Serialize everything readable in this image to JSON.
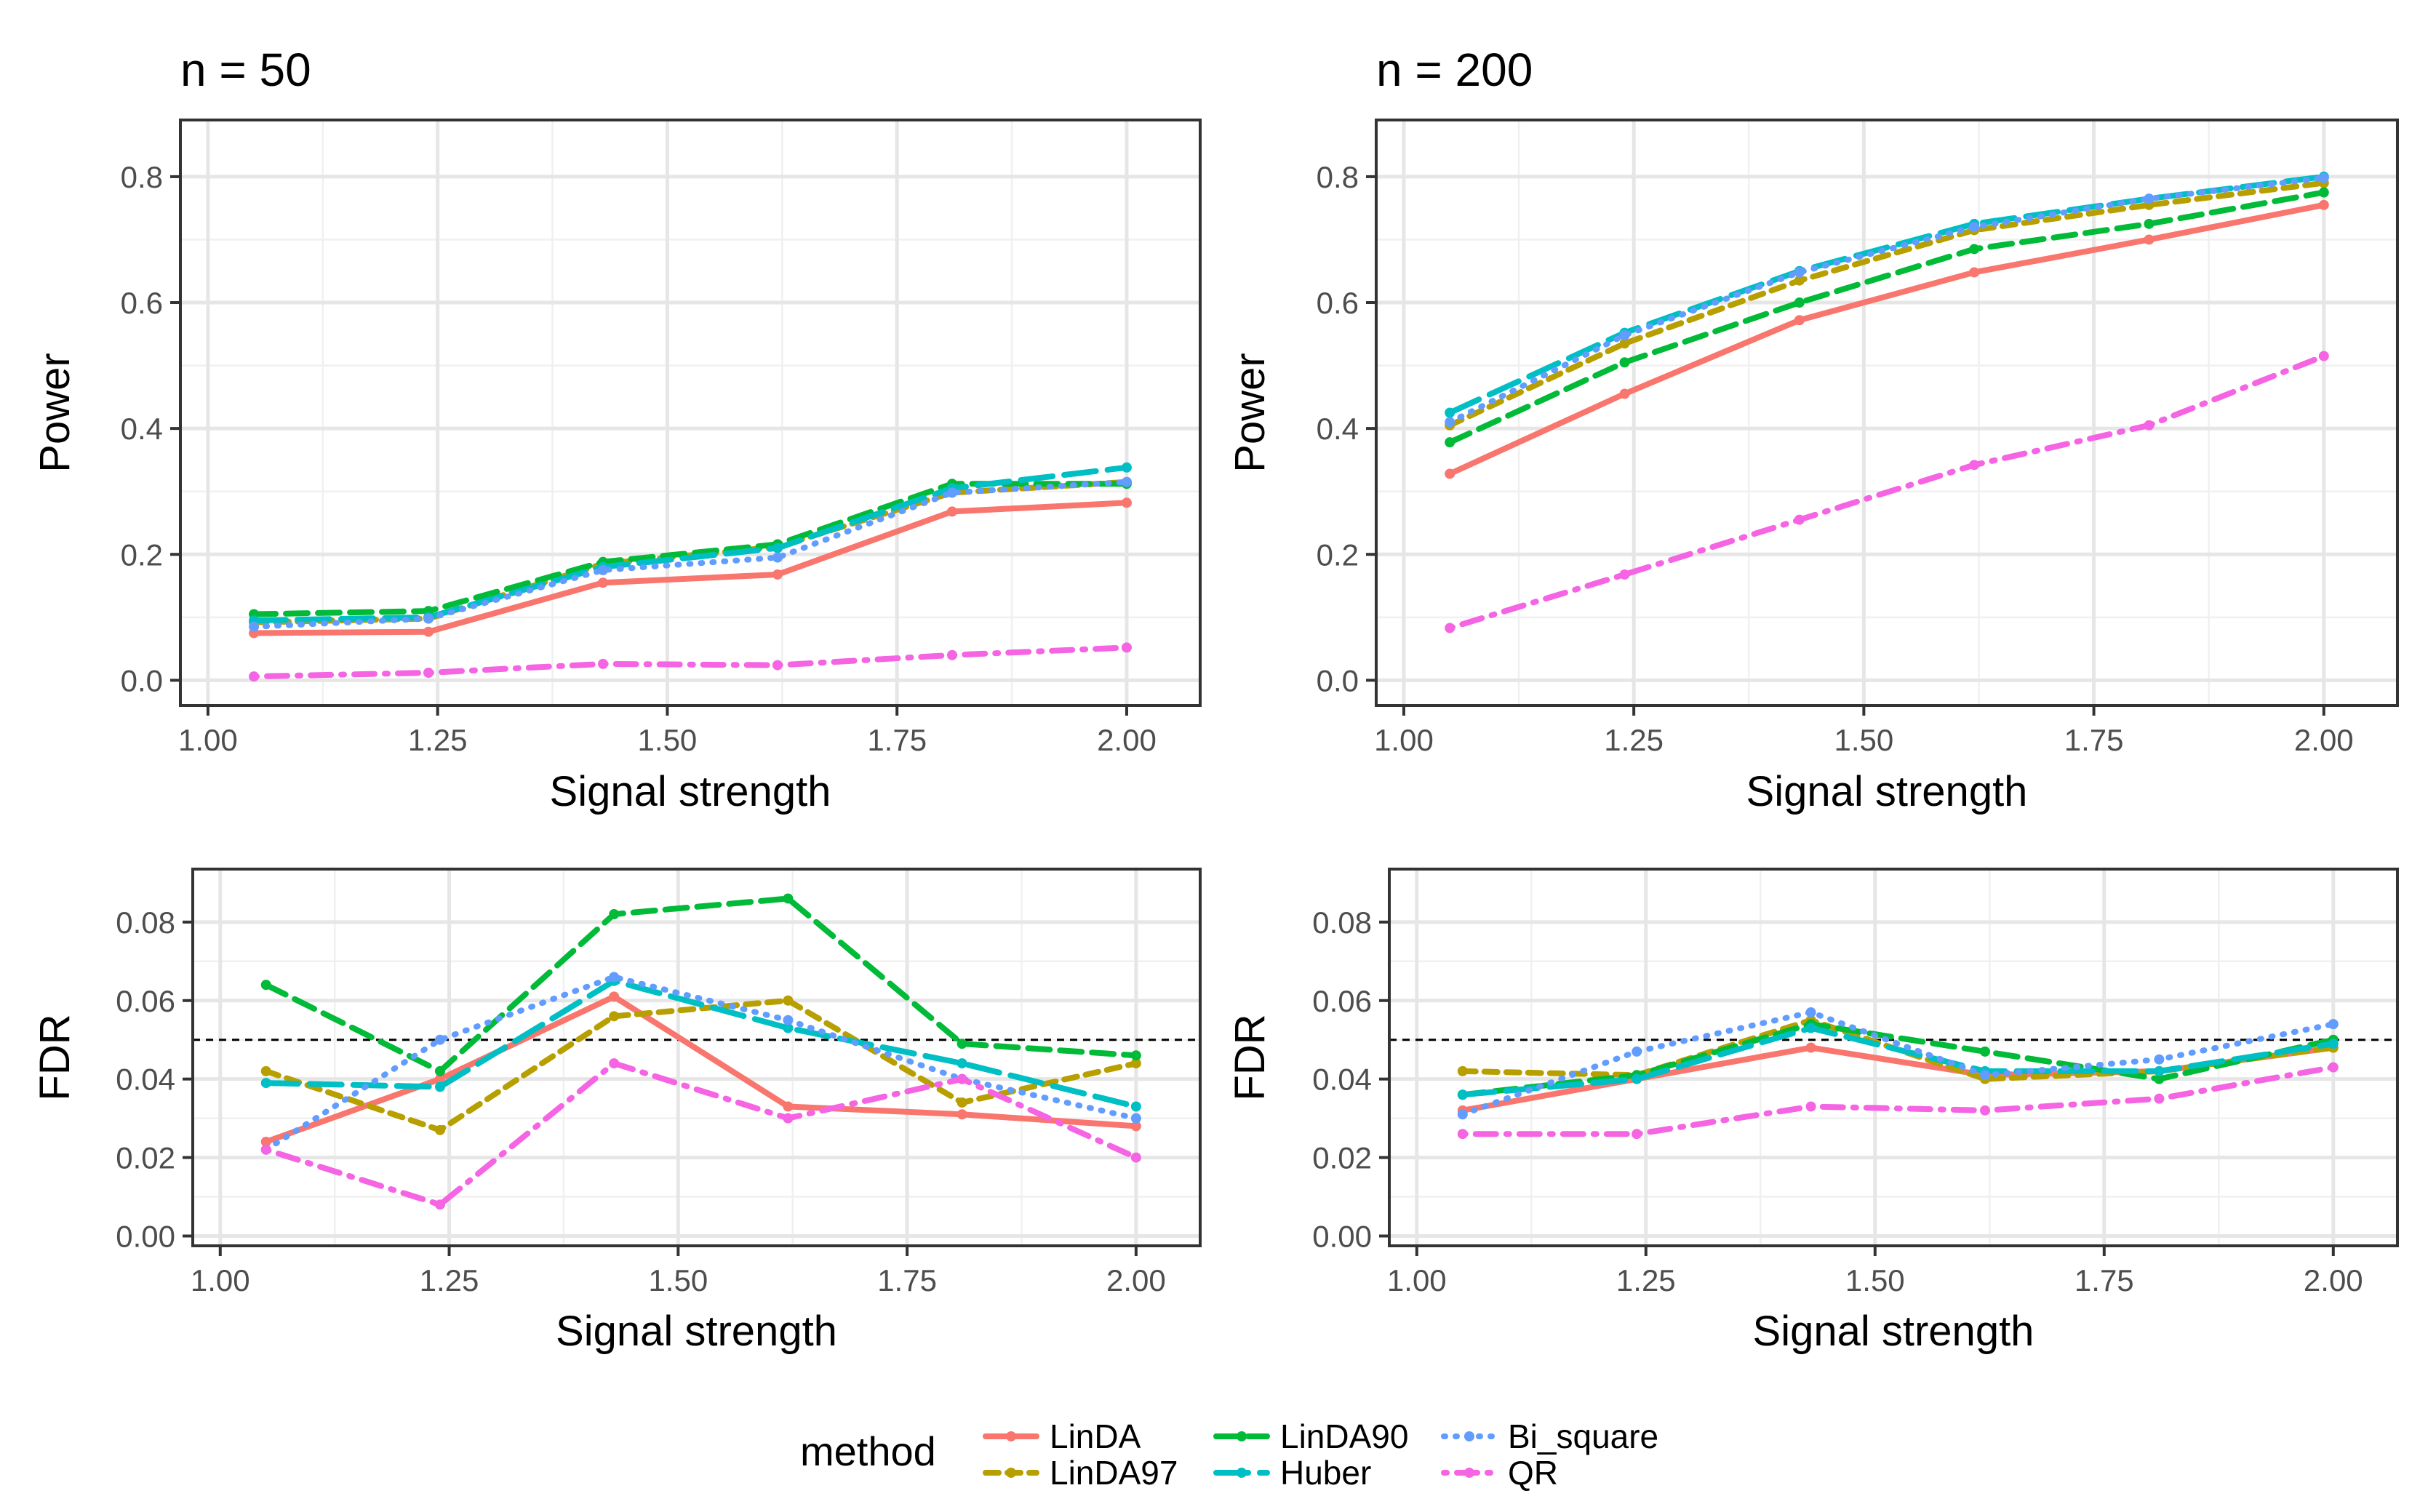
{
  "chart_data": [
    {
      "id": "power_n50",
      "type": "line",
      "title": "n = 50",
      "xlabel": "Signal strength",
      "ylabel": "Power",
      "xlim": [
        0.97,
        2.08
      ],
      "ylim": [
        -0.04,
        0.89
      ],
      "xticks": [
        1.0,
        1.25,
        1.5,
        1.75,
        2.0
      ],
      "xtick_labels": [
        "1.00",
        "1.25",
        "1.50",
        "1.75",
        "2.00"
      ],
      "yticks": [
        0.0,
        0.2,
        0.4,
        0.6,
        0.8
      ],
      "ytick_labels": [
        "0.0",
        "0.2",
        "0.4",
        "0.6",
        "0.8"
      ],
      "x": [
        1.05,
        1.24,
        1.43,
        1.62,
        1.81,
        2.0
      ],
      "series": [
        {
          "name": "LinDA",
          "values": [
            0.075,
            0.077,
            0.155,
            0.168,
            0.268,
            0.282
          ]
        },
        {
          "name": "LinDA97",
          "values": [
            0.092,
            0.098,
            0.185,
            0.212,
            0.298,
            0.315
          ]
        },
        {
          "name": "LinDA90",
          "values": [
            0.105,
            0.11,
            0.188,
            0.216,
            0.312,
            0.312
          ]
        },
        {
          "name": "Huber",
          "values": [
            0.095,
            0.1,
            0.18,
            0.21,
            0.305,
            0.338
          ]
        },
        {
          "name": "Bi_square",
          "values": [
            0.085,
            0.098,
            0.175,
            0.195,
            0.298,
            0.315
          ]
        },
        {
          "name": "QR",
          "values": [
            0.006,
            0.012,
            0.026,
            0.024,
            0.04,
            0.052
          ]
        }
      ]
    },
    {
      "id": "power_n200",
      "type": "line",
      "title": "n = 200",
      "xlabel": "Signal strength",
      "ylabel": "Power",
      "xlim": [
        0.97,
        2.08
      ],
      "ylim": [
        -0.04,
        0.89
      ],
      "xticks": [
        1.0,
        1.25,
        1.5,
        1.75,
        2.0
      ],
      "xtick_labels": [
        "1.00",
        "1.25",
        "1.50",
        "1.75",
        "2.00"
      ],
      "yticks": [
        0.0,
        0.2,
        0.4,
        0.6,
        0.8
      ],
      "ytick_labels": [
        "0.0",
        "0.2",
        "0.4",
        "0.6",
        "0.8"
      ],
      "x": [
        1.05,
        1.24,
        1.43,
        1.62,
        1.81,
        2.0
      ],
      "series": [
        {
          "name": "LinDA",
          "values": [
            0.328,
            0.455,
            0.572,
            0.648,
            0.7,
            0.755
          ]
        },
        {
          "name": "LinDA97",
          "values": [
            0.405,
            0.535,
            0.635,
            0.715,
            0.755,
            0.79
          ]
        },
        {
          "name": "LinDA90",
          "values": [
            0.378,
            0.505,
            0.6,
            0.685,
            0.725,
            0.775
          ]
        },
        {
          "name": "Huber",
          "values": [
            0.425,
            0.552,
            0.65,
            0.725,
            0.765,
            0.8
          ]
        },
        {
          "name": "Bi_square",
          "values": [
            0.41,
            0.548,
            0.648,
            0.72,
            0.765,
            0.798
          ]
        },
        {
          "name": "QR",
          "values": [
            0.083,
            0.168,
            0.255,
            0.342,
            0.405,
            0.515
          ]
        }
      ]
    },
    {
      "id": "fdr_n50",
      "type": "line",
      "xlabel": "Signal strength",
      "ylabel": "FDR",
      "xlim": [
        0.97,
        2.07
      ],
      "ylim": [
        -0.0025,
        0.0935
      ],
      "xticks": [
        1.0,
        1.25,
        1.5,
        1.75,
        2.0
      ],
      "xtick_labels": [
        "1.00",
        "1.25",
        "1.50",
        "1.75",
        "2.00"
      ],
      "yticks": [
        0.0,
        0.02,
        0.04,
        0.06,
        0.08
      ],
      "ytick_labels": [
        "0.00",
        "0.02",
        "0.04",
        "0.06",
        "0.08"
      ],
      "reference_line": 0.05,
      "x": [
        1.05,
        1.24,
        1.43,
        1.62,
        1.81,
        2.0
      ],
      "series": [
        {
          "name": "LinDA",
          "values": [
            0.024,
            0.04,
            0.061,
            0.033,
            0.031,
            0.028
          ]
        },
        {
          "name": "LinDA97",
          "values": [
            0.042,
            0.027,
            0.056,
            0.06,
            0.034,
            0.044
          ]
        },
        {
          "name": "LinDA90",
          "values": [
            0.064,
            0.042,
            0.082,
            0.086,
            0.049,
            0.046
          ]
        },
        {
          "name": "Huber",
          "values": [
            0.039,
            0.038,
            0.065,
            0.053,
            0.044,
            0.033
          ]
        },
        {
          "name": "Bi_square",
          "values": [
            0.022,
            0.05,
            0.066,
            0.055,
            0.04,
            0.03
          ]
        },
        {
          "name": "QR",
          "values": [
            0.022,
            0.008,
            0.044,
            0.03,
            0.04,
            0.02
          ]
        }
      ]
    },
    {
      "id": "fdr_n200",
      "type": "line",
      "xlabel": "Signal strength",
      "ylabel": "FDR",
      "xlim": [
        0.97,
        2.07
      ],
      "ylim": [
        -0.0025,
        0.0935
      ],
      "xticks": [
        1.0,
        1.25,
        1.5,
        1.75,
        2.0
      ],
      "xtick_labels": [
        "1.00",
        "1.25",
        "1.50",
        "1.75",
        "2.00"
      ],
      "yticks": [
        0.0,
        0.02,
        0.04,
        0.06,
        0.08
      ],
      "ytick_labels": [
        "0.00",
        "0.02",
        "0.04",
        "0.06",
        "0.08"
      ],
      "reference_line": 0.05,
      "x": [
        1.05,
        1.24,
        1.43,
        1.62,
        1.81,
        2.0
      ],
      "series": [
        {
          "name": "LinDA",
          "values": [
            0.032,
            0.04,
            0.048,
            0.041,
            0.042,
            0.048
          ]
        },
        {
          "name": "LinDA97",
          "values": [
            0.042,
            0.041,
            0.055,
            0.04,
            0.042,
            0.048
          ]
        },
        {
          "name": "LinDA90",
          "values": [
            0.036,
            0.041,
            0.054,
            0.047,
            0.04,
            0.05
          ]
        },
        {
          "name": "Huber",
          "values": [
            0.036,
            0.04,
            0.053,
            0.042,
            0.042,
            0.049
          ]
        },
        {
          "name": "Bi_square",
          "values": [
            0.031,
            0.047,
            0.057,
            0.041,
            0.045,
            0.054
          ]
        },
        {
          "name": "QR",
          "values": [
            0.026,
            0.026,
            0.033,
            0.032,
            0.035,
            0.043
          ]
        }
      ]
    }
  ],
  "legend": {
    "title": "method",
    "position": "bottom",
    "entries": [
      {
        "name": "LinDA",
        "color": "#F8766D",
        "dash": "solid"
      },
      {
        "name": "LinDA97",
        "color": "#B79F00",
        "dash": "short-dash"
      },
      {
        "name": "LinDA90",
        "color": "#00BA38",
        "dash": "dash"
      },
      {
        "name": "Huber",
        "color": "#00BFC4",
        "dash": "long-dash"
      },
      {
        "name": "Bi_square",
        "color": "#619CFF",
        "dash": "dotted"
      },
      {
        "name": "QR",
        "color": "#F564E3",
        "dash": "dot-dash"
      }
    ]
  }
}
